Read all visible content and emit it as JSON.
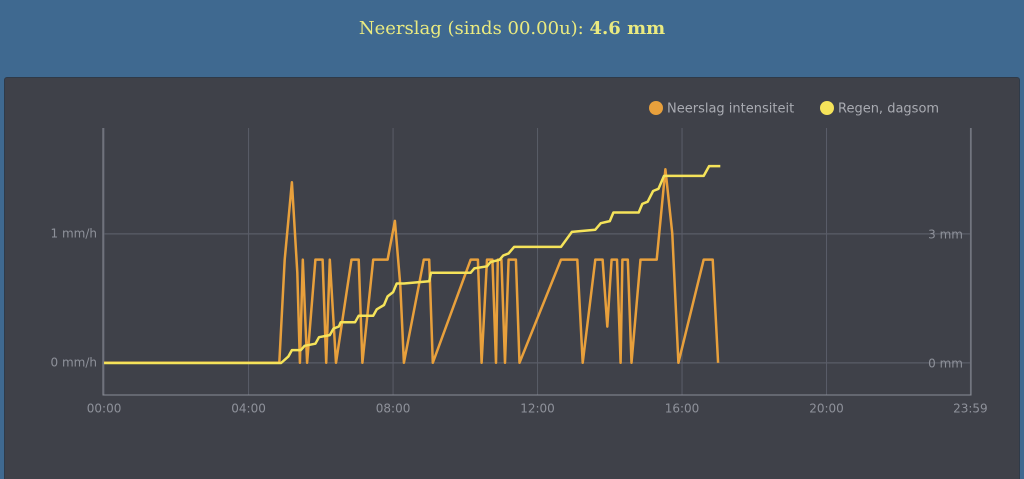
{
  "header": {
    "label": "Neerslag (sinds 00.00u):",
    "value": "4.6 mm"
  },
  "chart_data": {
    "type": "line",
    "xlim": [
      -0.03,
      24
    ],
    "xticks": [
      {
        "value": 0,
        "label": "00:00"
      },
      {
        "value": 4,
        "label": "04:00"
      },
      {
        "value": 8,
        "label": "08:00"
      },
      {
        "value": 12,
        "label": "12:00"
      },
      {
        "value": 16,
        "label": "16:00"
      },
      {
        "value": 20,
        "label": "20:00"
      },
      {
        "value": 23.983,
        "label": "23:59"
      }
    ],
    "ylim": [
      -0.25,
      1.82
    ],
    "yticks": [
      {
        "value": 0,
        "label": "0 mm/h"
      },
      {
        "value": 1,
        "label": "1 mm/h"
      }
    ],
    "y2lim": [
      -0.744,
      5.465
    ],
    "y2ticks": [
      {
        "value": 0,
        "label": "0 mm"
      },
      {
        "value": 3,
        "label": "3 mm"
      }
    ],
    "grid": true,
    "legend": "top-right",
    "series": [
      {
        "name": "Neerslag intensiteit",
        "color": "#e8a03c",
        "axis": "y",
        "x": [
          0,
          4.85,
          5.0,
          5.2,
          5.35,
          5.42,
          5.5,
          5.62,
          5.85,
          6.05,
          6.15,
          6.25,
          6.42,
          6.85,
          7.05,
          7.15,
          7.45,
          7.85,
          8.05,
          8.2,
          8.3,
          8.85,
          9.0,
          9.1,
          10.15,
          10.35,
          10.45,
          10.6,
          10.75,
          10.85,
          10.9,
          11.0,
          11.1,
          11.2,
          11.4,
          11.5,
          12.65,
          13.1,
          13.25,
          13.6,
          13.8,
          13.93,
          14.05,
          14.2,
          14.3,
          14.35,
          14.5,
          14.6,
          14.85,
          15.3,
          15.54,
          15.73,
          15.9,
          16.6,
          16.85,
          17.0
        ],
        "values": [
          0,
          0,
          0.8,
          1.4,
          0.7,
          0,
          0.8,
          0,
          0.8,
          0.8,
          0,
          0.8,
          0,
          0.8,
          0.8,
          0,
          0.8,
          0.8,
          1.1,
          0.6,
          0,
          0.8,
          0.8,
          0,
          0.8,
          0.8,
          0,
          0.8,
          0.8,
          0,
          0.8,
          0.8,
          0,
          0.8,
          0.8,
          0,
          0.8,
          0.8,
          0,
          0.8,
          0.8,
          0.28,
          0.8,
          0.8,
          0,
          0.8,
          0.8,
          0,
          0.8,
          0.8,
          1.5,
          1.0,
          0,
          0.8,
          0.8,
          0
        ]
      },
      {
        "name": "Regen, dagsom",
        "color": "#f5e35a",
        "axis": "y2",
        "x": [
          0,
          4.9,
          5.1,
          5.2,
          5.45,
          5.55,
          5.85,
          5.95,
          6.25,
          6.35,
          6.5,
          6.55,
          6.95,
          7.05,
          7.45,
          7.55,
          7.75,
          7.85,
          8.0,
          8.1,
          8.3,
          9.0,
          9.05,
          10.15,
          10.25,
          10.6,
          10.7,
          10.95,
          11.05,
          11.2,
          11.35,
          12.65,
          12.95,
          13.6,
          13.75,
          14.0,
          14.1,
          14.8,
          14.9,
          15.05,
          15.2,
          15.35,
          15.5,
          16.6,
          16.75,
          17.06
        ],
        "values": [
          0,
          0,
          0.15,
          0.3,
          0.3,
          0.4,
          0.45,
          0.6,
          0.65,
          0.8,
          0.85,
          0.95,
          0.95,
          1.1,
          1.1,
          1.25,
          1.35,
          1.55,
          1.65,
          1.85,
          1.85,
          1.9,
          2.1,
          2.1,
          2.2,
          2.25,
          2.35,
          2.4,
          2.5,
          2.55,
          2.7,
          2.7,
          3.05,
          3.1,
          3.25,
          3.3,
          3.5,
          3.5,
          3.7,
          3.75,
          4.0,
          4.05,
          4.35,
          4.35,
          4.58,
          4.58
        ]
      }
    ]
  }
}
